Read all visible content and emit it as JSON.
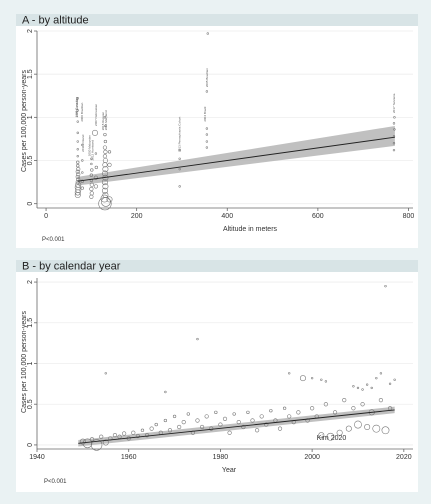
{
  "chart_data": [
    {
      "type": "scatter",
      "title": "A - by altitude",
      "xlabel": "Altitude in meters",
      "ylabel": "Cases per 100,000 person-years",
      "xlim": [
        -20,
        810
      ],
      "ylim": [
        -0.05,
        2.0
      ],
      "xticks": [
        0,
        200,
        400,
        600,
        800
      ],
      "yticks": [
        0,
        0.5,
        1,
        1.5,
        2
      ],
      "grid": "horizontal",
      "pvalue": "P<0.001",
      "fit": {
        "x": [
          70,
          770
        ],
        "y": [
          0.26,
          0.77
        ],
        "ci_start": [
          0.21,
          0.31
        ],
        "ci_end": [
          0.67,
          0.9
        ]
      },
      "points": [
        {
          "x": 70,
          "y": 0.1,
          "r": 3
        },
        {
          "x": 70,
          "y": 0.13,
          "r": 3
        },
        {
          "x": 71,
          "y": 0.16,
          "r": 3
        },
        {
          "x": 70,
          "y": 0.19,
          "r": 3
        },
        {
          "x": 71,
          "y": 0.22,
          "r": 3
        },
        {
          "x": 70,
          "y": 0.25,
          "r": 2
        },
        {
          "x": 71,
          "y": 0.28,
          "r": 2
        },
        {
          "x": 70,
          "y": 0.31,
          "r": 2
        },
        {
          "x": 71,
          "y": 0.34,
          "r": 2
        },
        {
          "x": 70,
          "y": 0.37,
          "r": 2
        },
        {
          "x": 71,
          "y": 0.4,
          "r": 2
        },
        {
          "x": 70,
          "y": 0.44,
          "r": 1.5
        },
        {
          "x": 70,
          "y": 0.48,
          "r": 1.5
        },
        {
          "x": 70,
          "y": 0.55,
          "r": 1
        },
        {
          "x": 70,
          "y": 0.63,
          "r": 1
        },
        {
          "x": 70,
          "y": 0.72,
          "r": 1
        },
        {
          "x": 70,
          "y": 0.82,
          "r": 1
        },
        {
          "x": 70,
          "y": 0.95,
          "r": 1
        },
        {
          "x": 70,
          "y": 1.08,
          "r": 1
        },
        {
          "x": 70,
          "y": 1.22,
          "r": 1
        },
        {
          "x": 80,
          "y": 0.18,
          "r": 1.5
        },
        {
          "x": 80,
          "y": 0.26,
          "r": 1.5
        },
        {
          "x": 80,
          "y": 0.36,
          "r": 1
        },
        {
          "x": 80,
          "y": 0.5,
          "r": 1
        },
        {
          "x": 80,
          "y": 0.68,
          "r": 1
        },
        {
          "x": 100,
          "y": 0.08,
          "r": 2
        },
        {
          "x": 101,
          "y": 0.12,
          "r": 2
        },
        {
          "x": 100,
          "y": 0.17,
          "r": 2
        },
        {
          "x": 101,
          "y": 0.22,
          "r": 2
        },
        {
          "x": 100,
          "y": 0.27,
          "r": 1.5
        },
        {
          "x": 100,
          "y": 0.33,
          "r": 1.5
        },
        {
          "x": 101,
          "y": 0.39,
          "r": 1.5
        },
        {
          "x": 100,
          "y": 0.46,
          "r": 1
        },
        {
          "x": 100,
          "y": 0.52,
          "r": 1
        },
        {
          "x": 108,
          "y": 0.82,
          "r": 3
        },
        {
          "x": 110,
          "y": 0.2,
          "r": 2
        },
        {
          "x": 110,
          "y": 0.3,
          "r": 2
        },
        {
          "x": 111,
          "y": 0.42,
          "r": 1.5
        },
        {
          "x": 110,
          "y": 0.58,
          "r": 1
        },
        {
          "x": 130,
          "y": 0.0,
          "r": 7
        },
        {
          "x": 132,
          "y": 0.02,
          "r": 5
        },
        {
          "x": 129,
          "y": 0.06,
          "r": 4
        },
        {
          "x": 131,
          "y": 0.1,
          "r": 3
        },
        {
          "x": 130,
          "y": 0.15,
          "r": 3
        },
        {
          "x": 131,
          "y": 0.2,
          "r": 3
        },
        {
          "x": 130,
          "y": 0.25,
          "r": 3
        },
        {
          "x": 131,
          "y": 0.3,
          "r": 3
        },
        {
          "x": 130,
          "y": 0.35,
          "r": 3
        },
        {
          "x": 131,
          "y": 0.4,
          "r": 3
        },
        {
          "x": 130,
          "y": 0.45,
          "r": 2.5
        },
        {
          "x": 131,
          "y": 0.5,
          "r": 2.5
        },
        {
          "x": 130,
          "y": 0.55,
          "r": 2
        },
        {
          "x": 131,
          "y": 0.6,
          "r": 2
        },
        {
          "x": 130,
          "y": 0.65,
          "r": 2
        },
        {
          "x": 131,
          "y": 0.72,
          "r": 1.5
        },
        {
          "x": 130,
          "y": 0.8,
          "r": 1.5
        },
        {
          "x": 131,
          "y": 0.9,
          "r": 1
        },
        {
          "x": 130,
          "y": 1.0,
          "r": 1
        },
        {
          "x": 140,
          "y": 0.05,
          "r": 3
        },
        {
          "x": 140,
          "y": 0.45,
          "r": 2
        },
        {
          "x": 140,
          "y": 0.6,
          "r": 1.5
        },
        {
          "x": 295,
          "y": 0.2,
          "r": 1
        },
        {
          "x": 295,
          "y": 0.4,
          "r": 1
        },
        {
          "x": 295,
          "y": 0.52,
          "r": 1
        },
        {
          "x": 295,
          "y": 0.62,
          "r": 1
        },
        {
          "x": 355,
          "y": 0.65,
          "r": 1
        },
        {
          "x": 355,
          "y": 0.72,
          "r": 1
        },
        {
          "x": 355,
          "y": 0.8,
          "r": 1
        },
        {
          "x": 355,
          "y": 0.87,
          "r": 1
        },
        {
          "x": 355,
          "y": 1.3,
          "r": 1
        },
        {
          "x": 357,
          "y": 1.97,
          "r": 1
        },
        {
          "x": 768,
          "y": 0.62,
          "r": 1
        },
        {
          "x": 768,
          "y": 0.7,
          "r": 1
        },
        {
          "x": 768,
          "y": 0.78,
          "r": 1
        },
        {
          "x": 769,
          "y": 0.86,
          "r": 1
        },
        {
          "x": 768,
          "y": 0.93,
          "r": 1
        },
        {
          "x": 769,
          "y": 1.0,
          "r": 1
        }
      ],
      "study_labels": [
        {
          "text": "1990 Canadian",
          "x": 69,
          "y": 1.0
        },
        {
          "text": "2015 Canadian",
          "x": 71,
          "y": 1.0
        },
        {
          "text": "2000 Brazilian",
          "x": 82,
          "y": 0.95
        },
        {
          "text": "2011 Finland",
          "x": 84,
          "y": 0.6
        },
        {
          "text": "2007 Nebraskan",
          "x": 112,
          "y": 0.9
        },
        {
          "text": "2000 Malaysian",
          "x": 98,
          "y": 0.55
        },
        {
          "text": "2012 Harrisand",
          "x": 105,
          "y": 0.5
        },
        {
          "text": "2015 Russian",
          "x": 128,
          "y": 0.85
        },
        {
          "text": "2014 Maryland",
          "x": 134,
          "y": 0.85
        },
        {
          "text": "2013 Pennsylvania Cohort",
          "x": 297,
          "y": 0.6
        },
        {
          "text": "2004 Brazil",
          "x": 353,
          "y": 0.95
        },
        {
          "text": "2005 Brazilian",
          "x": 358,
          "y": 1.35
        },
        {
          "text": "2017 Tanzania",
          "x": 770,
          "y": 1.05
        }
      ]
    },
    {
      "type": "scatter",
      "title": "B - by calendar year",
      "xlabel": "Year",
      "ylabel": "Cases per 100,000 person-years",
      "xlim": [
        1940,
        2022
      ],
      "ylim": [
        -0.05,
        2.05
      ],
      "xticks": [
        1940,
        1960,
        1980,
        2000,
        2020
      ],
      "yticks": [
        0,
        0.5,
        1,
        1.5,
        2
      ],
      "grid": "horizontal",
      "pvalue": "P<0.001",
      "annotation": {
        "text": "Kim 2020",
        "x": 2001,
        "y": 0.06
      },
      "fit": {
        "x": [
          1949,
          2018
        ],
        "y": [
          0.02,
          0.43
        ],
        "ci_start": [
          -0.02,
          0.06
        ],
        "ci_end": [
          0.39,
          0.47
        ]
      },
      "points": [
        {
          "x": 1950,
          "y": 0.04,
          "r": 3
        },
        {
          "x": 1951,
          "y": 0.02,
          "r": 5
        },
        {
          "x": 1953,
          "y": 0.0,
          "r": 6
        },
        {
          "x": 1955,
          "y": 0.03,
          "r": 3
        },
        {
          "x": 1952,
          "y": 0.07,
          "r": 2
        },
        {
          "x": 1954,
          "y": 0.1,
          "r": 2
        },
        {
          "x": 1956,
          "y": 0.08,
          "r": 2
        },
        {
          "x": 1957,
          "y": 0.12,
          "r": 2
        },
        {
          "x": 1958,
          "y": 0.1,
          "r": 2
        },
        {
          "x": 1959,
          "y": 0.14,
          "r": 2
        },
        {
          "x": 1960,
          "y": 0.08,
          "r": 2
        },
        {
          "x": 1961,
          "y": 0.15,
          "r": 2
        },
        {
          "x": 1962,
          "y": 0.11,
          "r": 2
        },
        {
          "x": 1963,
          "y": 0.18,
          "r": 1.5
        },
        {
          "x": 1964,
          "y": 0.12,
          "r": 2
        },
        {
          "x": 1965,
          "y": 0.2,
          "r": 2
        },
        {
          "x": 1966,
          "y": 0.25,
          "r": 1.5
        },
        {
          "x": 1967,
          "y": 0.15,
          "r": 2
        },
        {
          "x": 1968,
          "y": 0.3,
          "r": 1.5
        },
        {
          "x": 1969,
          "y": 0.18,
          "r": 2
        },
        {
          "x": 1970,
          "y": 0.35,
          "r": 1.5
        },
        {
          "x": 1971,
          "y": 0.22,
          "r": 2
        },
        {
          "x": 1972,
          "y": 0.28,
          "r": 2
        },
        {
          "x": 1973,
          "y": 0.38,
          "r": 1.5
        },
        {
          "x": 1974,
          "y": 0.15,
          "r": 2
        },
        {
          "x": 1975,
          "y": 0.3,
          "r": 2
        },
        {
          "x": 1976,
          "y": 0.22,
          "r": 2
        },
        {
          "x": 1977,
          "y": 0.35,
          "r": 2
        },
        {
          "x": 1978,
          "y": 0.2,
          "r": 2
        },
        {
          "x": 1979,
          "y": 0.4,
          "r": 1.5
        },
        {
          "x": 1980,
          "y": 0.25,
          "r": 2
        },
        {
          "x": 1981,
          "y": 0.32,
          "r": 2
        },
        {
          "x": 1982,
          "y": 0.15,
          "r": 2
        },
        {
          "x": 1983,
          "y": 0.38,
          "r": 1.5
        },
        {
          "x": 1984,
          "y": 0.28,
          "r": 2
        },
        {
          "x": 1985,
          "y": 0.22,
          "r": 2
        },
        {
          "x": 1986,
          "y": 0.4,
          "r": 1.5
        },
        {
          "x": 1987,
          "y": 0.3,
          "r": 2
        },
        {
          "x": 1988,
          "y": 0.18,
          "r": 2
        },
        {
          "x": 1989,
          "y": 0.35,
          "r": 2
        },
        {
          "x": 1990,
          "y": 0.25,
          "r": 2
        },
        {
          "x": 1991,
          "y": 0.42,
          "r": 1.5
        },
        {
          "x": 1992,
          "y": 0.3,
          "r": 2
        },
        {
          "x": 1993,
          "y": 0.2,
          "r": 2
        },
        {
          "x": 1994,
          "y": 0.45,
          "r": 1.5
        },
        {
          "x": 1995,
          "y": 0.35,
          "r": 2
        },
        {
          "x": 1996,
          "y": 0.28,
          "r": 2
        },
        {
          "x": 1997,
          "y": 0.4,
          "r": 2
        },
        {
          "x": 1998,
          "y": 0.82,
          "r": 3
        },
        {
          "x": 1999,
          "y": 0.3,
          "r": 2
        },
        {
          "x": 2000,
          "y": 0.45,
          "r": 2
        },
        {
          "x": 2001,
          "y": 0.35,
          "r": 2
        },
        {
          "x": 2002,
          "y": 0.12,
          "r": 3
        },
        {
          "x": 2003,
          "y": 0.5,
          "r": 2
        },
        {
          "x": 2004,
          "y": 0.1,
          "r": 4
        },
        {
          "x": 2005,
          "y": 0.4,
          "r": 2
        },
        {
          "x": 2006,
          "y": 0.15,
          "r": 3
        },
        {
          "x": 2007,
          "y": 0.55,
          "r": 2
        },
        {
          "x": 2008,
          "y": 0.2,
          "r": 3
        },
        {
          "x": 2009,
          "y": 0.45,
          "r": 2
        },
        {
          "x": 2010,
          "y": 0.25,
          "r": 4
        },
        {
          "x": 2011,
          "y": 0.5,
          "r": 2
        },
        {
          "x": 2012,
          "y": 0.22,
          "r": 3
        },
        {
          "x": 2013,
          "y": 0.4,
          "r": 3
        },
        {
          "x": 2014,
          "y": 0.2,
          "r": 4
        },
        {
          "x": 2015,
          "y": 0.55,
          "r": 2
        },
        {
          "x": 2016,
          "y": 0.18,
          "r": 4
        },
        {
          "x": 2017,
          "y": 0.45,
          "r": 2
        },
        {
          "x": 1955,
          "y": 0.88,
          "r": 1
        },
        {
          "x": 1968,
          "y": 0.65,
          "r": 1
        },
        {
          "x": 1975,
          "y": 1.3,
          "r": 1
        },
        {
          "x": 1995,
          "y": 0.88,
          "r": 1
        },
        {
          "x": 2000,
          "y": 0.82,
          "r": 1
        },
        {
          "x": 2002,
          "y": 0.8,
          "r": 1
        },
        {
          "x": 2003,
          "y": 0.78,
          "r": 1
        },
        {
          "x": 2009,
          "y": 0.72,
          "r": 1
        },
        {
          "x": 2010,
          "y": 0.7,
          "r": 1
        },
        {
          "x": 2011,
          "y": 0.68,
          "r": 1
        },
        {
          "x": 2012,
          "y": 0.74,
          "r": 1
        },
        {
          "x": 2013,
          "y": 0.7,
          "r": 1
        },
        {
          "x": 2014,
          "y": 0.82,
          "r": 1
        },
        {
          "x": 2015,
          "y": 0.88,
          "r": 1
        },
        {
          "x": 2016,
          "y": 1.95,
          "r": 1
        },
        {
          "x": 2017,
          "y": 0.75,
          "r": 1
        },
        {
          "x": 2018,
          "y": 0.8,
          "r": 1
        }
      ]
    }
  ]
}
